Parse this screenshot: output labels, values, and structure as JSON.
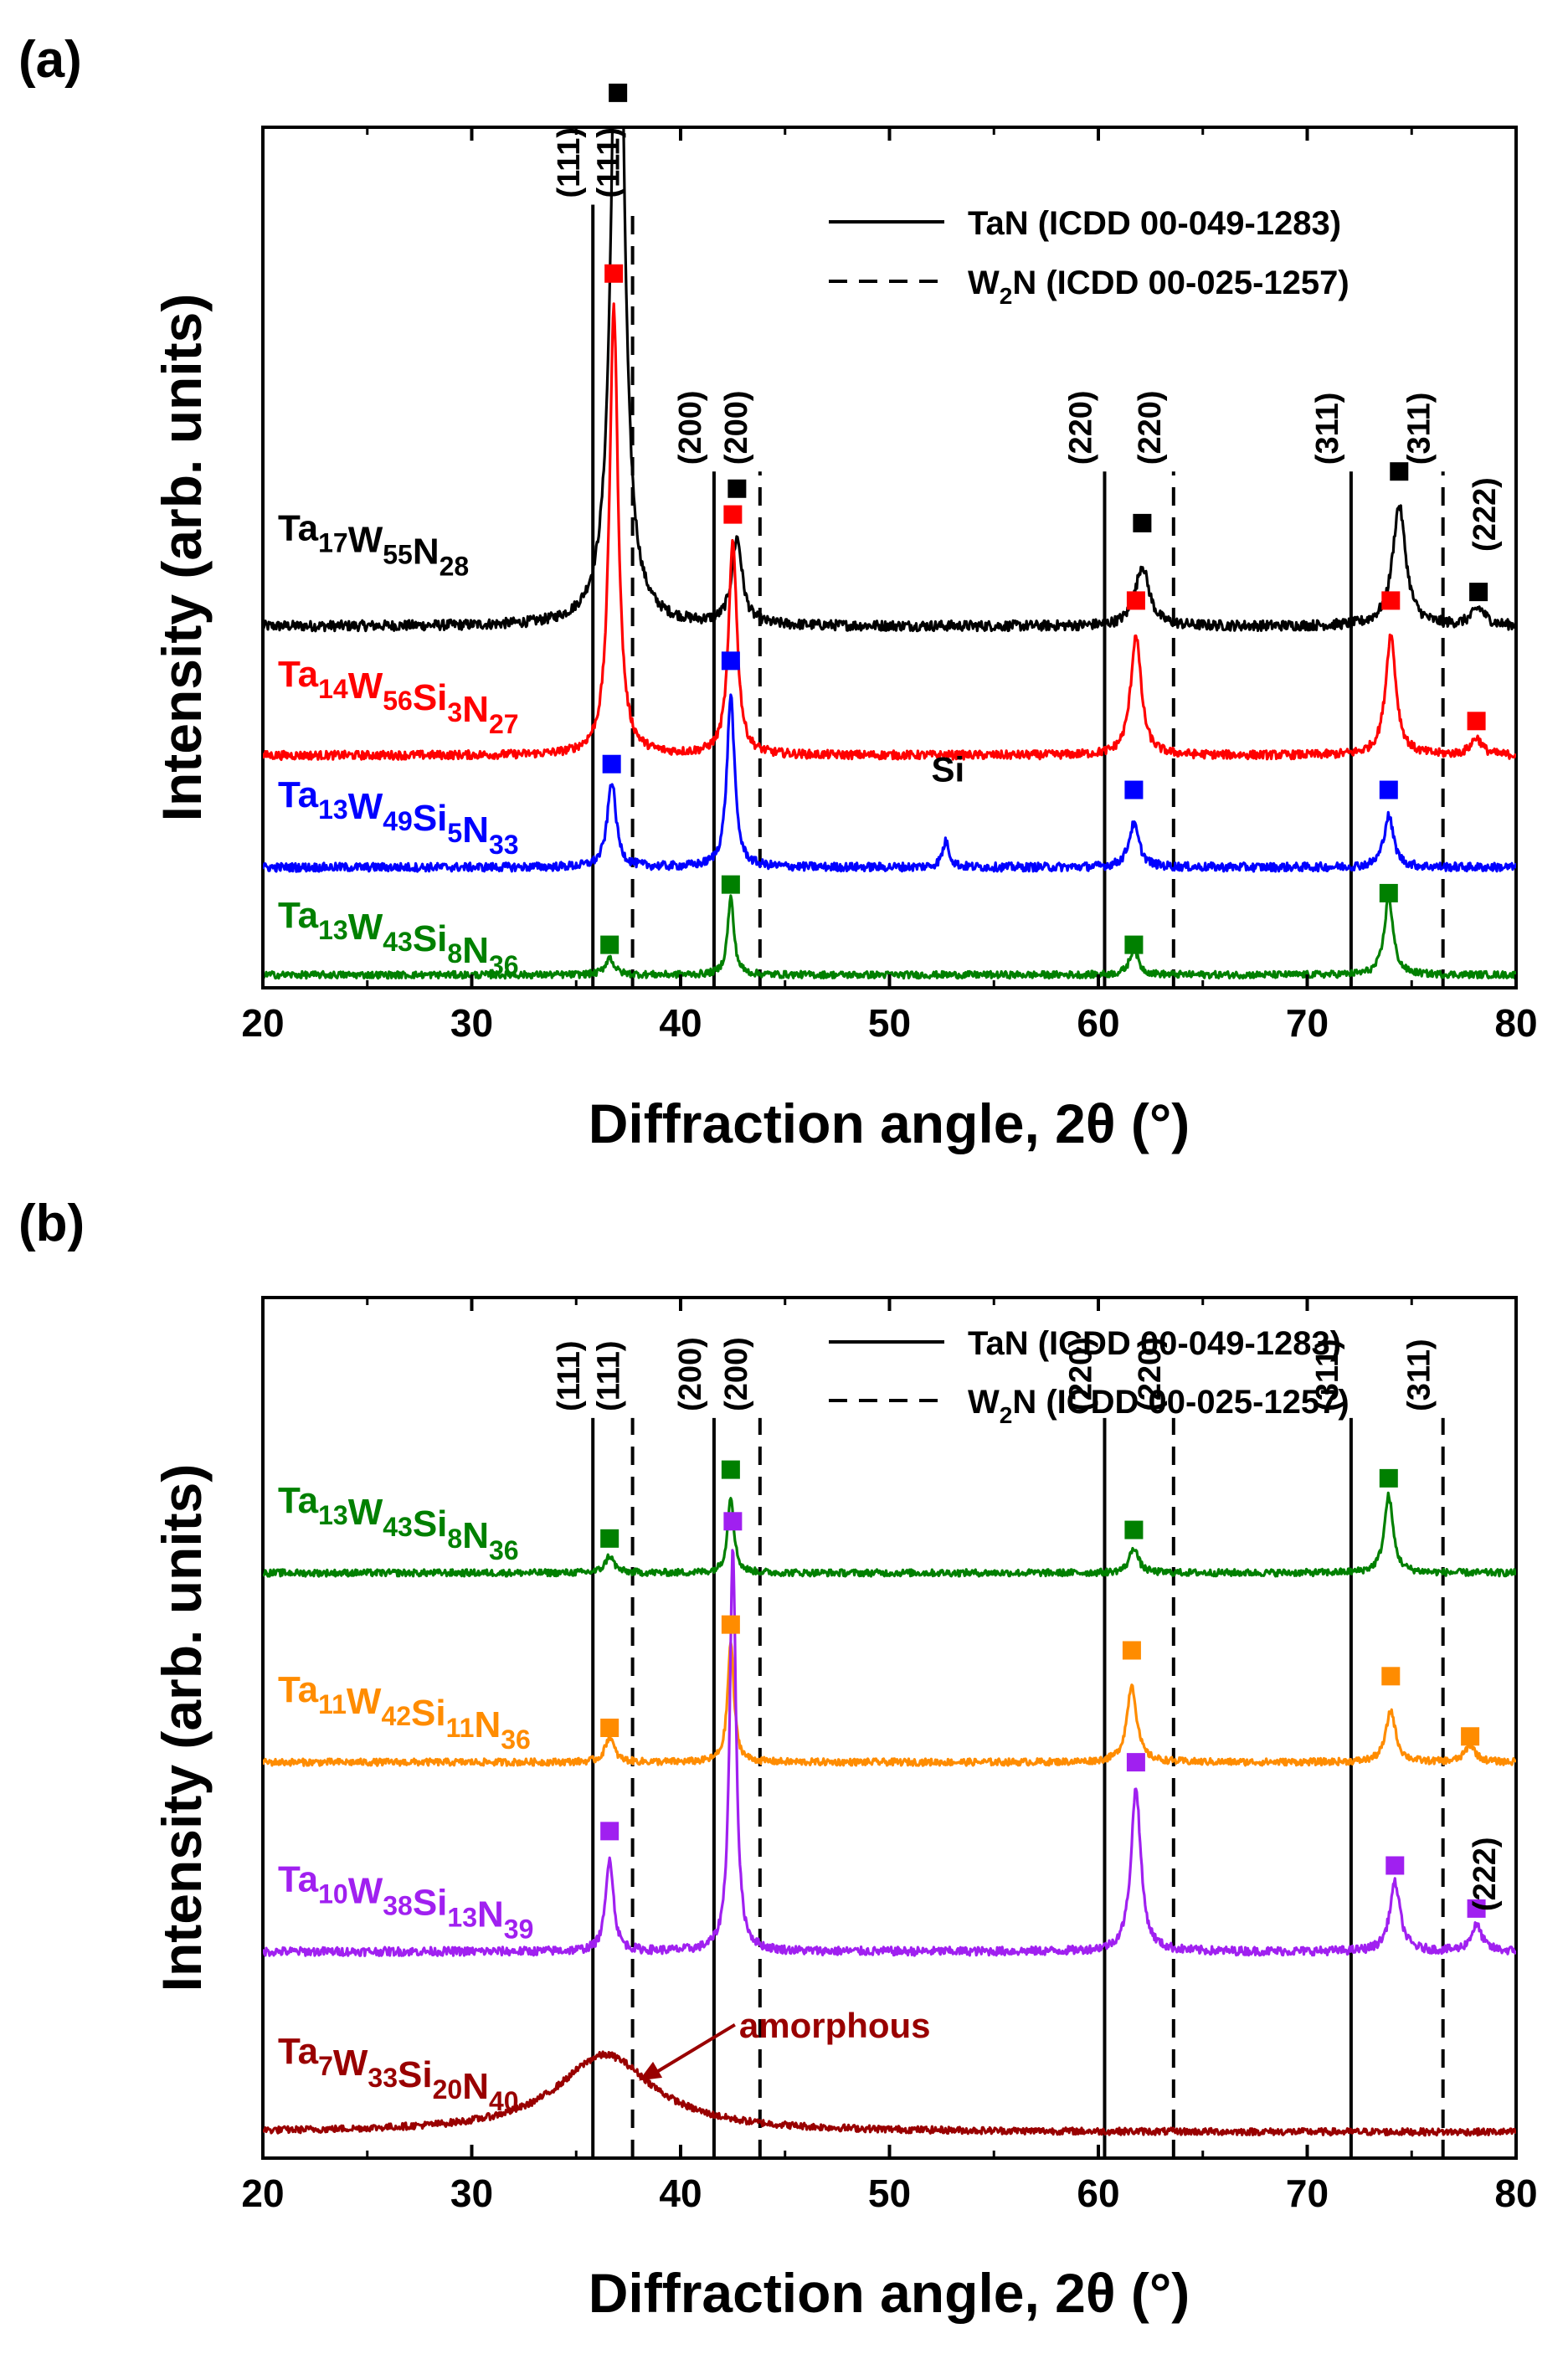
{
  "chart_data": [
    {
      "panel_label": "(a)",
      "type": "line",
      "xlabel": "Diffraction angle, 2θ (°)",
      "ylabel": "Intensity (arb. units)",
      "xlim": [
        20,
        80
      ],
      "xticks": [
        "20",
        "30",
        "40",
        "50",
        "60",
        "70",
        "80"
      ],
      "legend": [
        {
          "style": "solid",
          "label": "TaN (ICDD 00-049-1283)"
        },
        {
          "style": "dashed",
          "label_main": "W",
          "label_sub": "2",
          "label_rest": "N (ICDD 00-025-1257)"
        }
      ],
      "reference_lines": [
        {
          "phase": "TaN",
          "style": "solid",
          "x": 35.8,
          "hkl": "(111)",
          "top": 0.91
        },
        {
          "phase": "W2N",
          "style": "dashed",
          "x": 37.7,
          "hkl": "(111)",
          "top": 0.91
        },
        {
          "phase": "TaN",
          "style": "solid",
          "x": 41.6,
          "hkl": "(200)",
          "top": 0.6
        },
        {
          "phase": "W2N",
          "style": "dashed",
          "x": 43.8,
          "hkl": "(200)",
          "top": 0.6
        },
        {
          "phase": "TaN",
          "style": "solid",
          "x": 60.3,
          "hkl": "(220)",
          "top": 0.6
        },
        {
          "phase": "W2N",
          "style": "dashed",
          "x": 63.6,
          "hkl": "(220)",
          "top": 0.6
        },
        {
          "phase": "TaN",
          "style": "solid",
          "x": 72.1,
          "hkl": "(311)",
          "top": 0.6
        },
        {
          "phase": "W2N",
          "style": "dashed",
          "x": 76.5,
          "hkl": "(311)",
          "top": 0.6
        }
      ],
      "series": [
        {
          "name": "Ta17W55N28",
          "formula": [
            [
              "Ta",
              "17"
            ],
            [
              "W",
              "55"
            ],
            [
              "N",
              "28"
            ]
          ],
          "color": "#000000",
          "baseline": 0.42,
          "label_pos": 0.52,
          "noise": 0.006,
          "peaks": [
            [
              37.0,
              0.96,
              0.33
            ],
            [
              42.7,
              0.1,
              0.3
            ],
            [
              62.1,
              0.07,
              0.4
            ],
            [
              74.4,
              0.14,
              0.38
            ],
            [
              78.2,
              0.02,
              0.4
            ]
          ],
          "markers": [
            [
              37.0,
              1.04
            ],
            [
              42.7,
              0.58
            ],
            [
              62.1,
              0.54
            ],
            [
              74.4,
              0.6
            ],
            [
              78.2,
              0.46
            ]
          ]
        },
        {
          "name": "Ta14W56Si3N27",
          "formula": [
            [
              "Ta",
              "14"
            ],
            [
              "W",
              "56"
            ],
            [
              "Si",
              "3"
            ],
            [
              "N",
              "27"
            ]
          ],
          "color": "#ff0000",
          "baseline": 0.27,
          "label_pos": 0.35,
          "noise": 0.005,
          "peaks": [
            [
              36.8,
              0.52,
              0.25
            ],
            [
              42.5,
              0.25,
              0.24
            ],
            [
              61.8,
              0.14,
              0.3
            ],
            [
              74.0,
              0.14,
              0.3
            ],
            [
              78.1,
              0.02,
              0.32
            ]
          ],
          "markers": [
            [
              36.8,
              0.83
            ],
            [
              42.5,
              0.55
            ],
            [
              61.8,
              0.45
            ],
            [
              74.0,
              0.45
            ],
            [
              78.1,
              0.31
            ]
          ]
        },
        {
          "name": "Ta13W49Si5N33",
          "formula": [
            [
              "Ta",
              "13"
            ],
            [
              "W",
              "49"
            ],
            [
              "Si",
              "5"
            ],
            [
              "N",
              "33"
            ]
          ],
          "color": "#0000ff",
          "baseline": 0.14,
          "label_pos": 0.21,
          "noise": 0.005,
          "peaks": [
            [
              36.7,
              0.1,
              0.25
            ],
            [
              42.4,
              0.2,
              0.22
            ],
            [
              52.7,
              0.03,
              0.2
            ],
            [
              61.7,
              0.05,
              0.3
            ],
            [
              73.9,
              0.06,
              0.28
            ]
          ],
          "markers": [
            [
              36.7,
              0.26
            ],
            [
              42.4,
              0.38
            ],
            [
              61.7,
              0.23
            ],
            [
              73.9,
              0.23
            ]
          ]
        },
        {
          "name": "Ta13W43Si8N36",
          "formula": [
            [
              "Ta",
              "13"
            ],
            [
              "W",
              "43"
            ],
            [
              "Si",
              "8"
            ],
            [
              "N",
              "36"
            ]
          ],
          "color": "#008000",
          "baseline": 0.015,
          "label_pos": 0.07,
          "noise": 0.004,
          "peaks": [
            [
              36.6,
              0.02,
              0.25
            ],
            [
              42.4,
              0.09,
              0.18
            ],
            [
              61.7,
              0.03,
              0.25
            ],
            [
              73.9,
              0.09,
              0.25
            ]
          ],
          "markers": [
            [
              36.6,
              0.05
            ],
            [
              42.4,
              0.12
            ],
            [
              61.7,
              0.05
            ],
            [
              73.9,
              0.11
            ]
          ]
        }
      ],
      "annotations": [
        {
          "text": "Si",
          "x": 52.8,
          "y": 0.24
        },
        {
          "text": "(222)",
          "x": 79.0,
          "y": 0.55
        }
      ]
    },
    {
      "panel_label": "(b)",
      "type": "line",
      "xlabel": "Diffraction angle, 2θ (°)",
      "ylabel": "Intensity (arb. units)",
      "xlim": [
        20,
        80
      ],
      "xticks": [
        "20",
        "30",
        "40",
        "50",
        "60",
        "70",
        "80"
      ],
      "legend": [
        {
          "style": "solid",
          "label": "TaN (ICDD 00-049-1283)"
        },
        {
          "style": "dashed",
          "label_main": "W",
          "label_sub": "2",
          "label_rest": "N (ICDD 00-025-1257)"
        }
      ],
      "reference_lines": [
        {
          "phase": "TaN",
          "style": "solid",
          "x": 35.8,
          "hkl": "(111)",
          "top": 0.86
        },
        {
          "phase": "W2N",
          "style": "dashed",
          "x": 37.7,
          "hkl": "(111)",
          "top": 0.86
        },
        {
          "phase": "TaN",
          "style": "solid",
          "x": 41.6,
          "hkl": "(200)",
          "top": 0.86
        },
        {
          "phase": "W2N",
          "style": "dashed",
          "x": 43.8,
          "hkl": "(200)",
          "top": 0.86
        },
        {
          "phase": "TaN",
          "style": "solid",
          "x": 60.3,
          "hkl": "(220)",
          "top": 0.86
        },
        {
          "phase": "W2N",
          "style": "dashed",
          "x": 63.6,
          "hkl": "(220)",
          "top": 0.86
        },
        {
          "phase": "TaN",
          "style": "solid",
          "x": 72.1,
          "hkl": "(311)",
          "top": 0.86
        },
        {
          "phase": "W2N",
          "style": "dashed",
          "x": 76.5,
          "hkl": "(311)",
          "top": 0.86
        }
      ],
      "series": [
        {
          "name": "Ta13W43Si8N36",
          "formula": [
            [
              "Ta",
              "13"
            ],
            [
              "W",
              "43"
            ],
            [
              "Si",
              "8"
            ],
            [
              "N",
              "36"
            ]
          ],
          "color": "#008000",
          "baseline": 0.68,
          "label_pos": 0.75,
          "noise": 0.004,
          "peaks": [
            [
              36.6,
              0.02,
              0.25
            ],
            [
              42.4,
              0.09,
              0.18
            ],
            [
              61.7,
              0.03,
              0.25
            ],
            [
              73.9,
              0.09,
              0.25
            ]
          ],
          "markers": [
            [
              36.6,
              0.72
            ],
            [
              42.4,
              0.8
            ],
            [
              61.7,
              0.73
            ],
            [
              73.9,
              0.79
            ]
          ]
        },
        {
          "name": "Ta11W42Si11N36",
          "formula": [
            [
              "Ta",
              "11"
            ],
            [
              "W",
              "42"
            ],
            [
              "Si",
              "11"
            ],
            [
              "N",
              "36"
            ]
          ],
          "color": "#ff8c00",
          "baseline": 0.46,
          "label_pos": 0.53,
          "noise": 0.004,
          "peaks": [
            [
              36.6,
              0.03,
              0.25
            ],
            [
              42.4,
              0.14,
              0.18
            ],
            [
              61.6,
              0.09,
              0.28
            ],
            [
              74.0,
              0.06,
              0.28
            ],
            [
              77.8,
              0.02,
              0.3
            ]
          ],
          "markers": [
            [
              36.6,
              0.5
            ],
            [
              42.4,
              0.62
            ],
            [
              61.6,
              0.59
            ],
            [
              74.0,
              0.56
            ],
            [
              77.8,
              0.49
            ]
          ]
        },
        {
          "name": "Ta10W38Si13N39",
          "formula": [
            [
              "Ta",
              "10"
            ],
            [
              "W",
              "38"
            ],
            [
              "Si",
              "13"
            ],
            [
              "N",
              "39"
            ]
          ],
          "color": "#a020f0",
          "baseline": 0.24,
          "label_pos": 0.31,
          "noise": 0.005,
          "peaks": [
            [
              36.6,
              0.11,
              0.22
            ],
            [
              42.5,
              0.47,
              0.18
            ],
            [
              61.8,
              0.19,
              0.28
            ],
            [
              74.2,
              0.08,
              0.3
            ],
            [
              78.1,
              0.03,
              0.32
            ]
          ],
          "markers": [
            [
              36.6,
              0.38
            ],
            [
              42.5,
              0.74
            ],
            [
              61.8,
              0.46
            ],
            [
              74.2,
              0.34
            ],
            [
              78.1,
              0.29
            ]
          ]
        },
        {
          "name": "Ta7W33Si20N40",
          "formula": [
            [
              "Ta",
              "7"
            ],
            [
              "W",
              "33"
            ],
            [
              "Si",
              "20"
            ],
            [
              "N",
              "40"
            ]
          ],
          "color": "#990000",
          "baseline": 0.03,
          "label_pos": 0.11,
          "noise": 0.004,
          "peaks": [
            [
              36.4,
              0.09,
              2.8
            ]
          ],
          "markers": []
        }
      ],
      "annotations": [
        {
          "text": "amorphous",
          "x": 42.8,
          "y": 0.14
        },
        {
          "text": "(222)",
          "x": 79.0,
          "y": 0.33
        }
      ]
    }
  ]
}
